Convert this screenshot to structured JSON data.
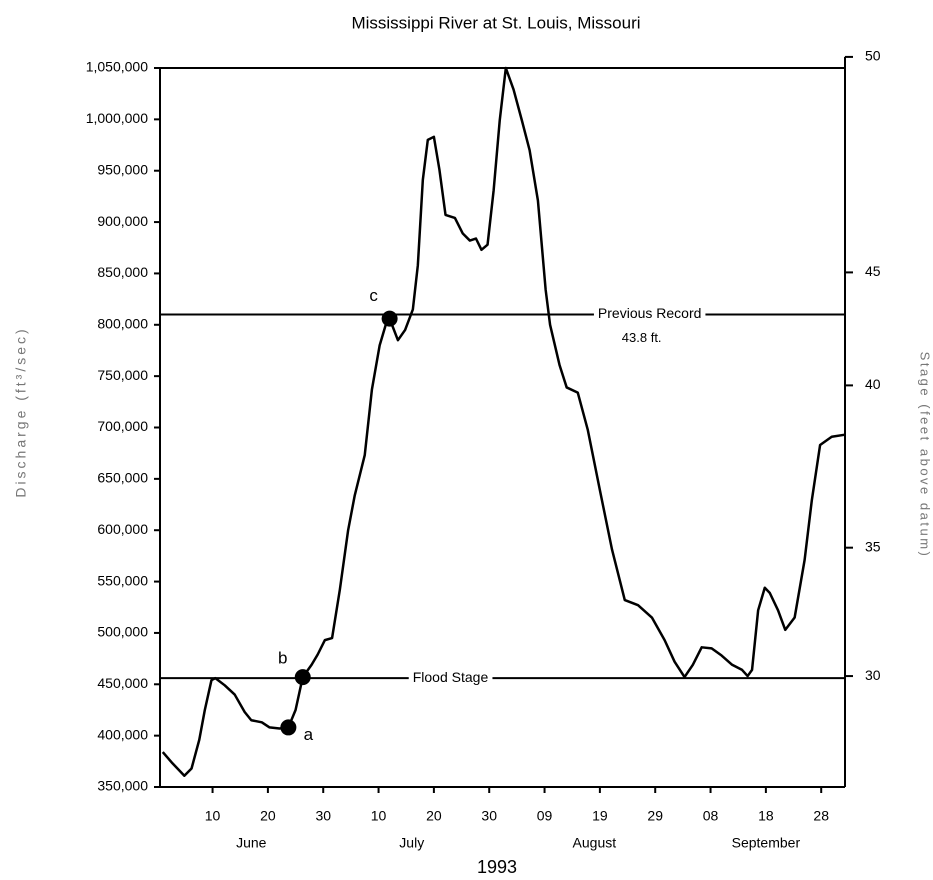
{
  "chart_data": {
    "type": "line",
    "title": "Mississippi River at St. Louis, Missouri",
    "ylabel": "Discharge (ft³/sec)",
    "y2label": "Stage (feet above datum)",
    "xlabel": "1993",
    "color": "#000000",
    "xlim": [
      0.5,
      124.3
    ],
    "ylim": [
      350000,
      1050000
    ],
    "yticks": [
      {
        "value": 350000,
        "label": "350,000"
      },
      {
        "value": 400000,
        "label": "400,000"
      },
      {
        "value": 450000,
        "label": "450,000"
      },
      {
        "value": 500000,
        "label": "500,000"
      },
      {
        "value": 550000,
        "label": "550,000"
      },
      {
        "value": 600000,
        "label": "600,000"
      },
      {
        "value": 650000,
        "label": "650,000"
      },
      {
        "value": 700000,
        "label": "700,000"
      },
      {
        "value": 750000,
        "label": "750,000"
      },
      {
        "value": 800000,
        "label": "800,000"
      },
      {
        "value": 850000,
        "label": "850,000"
      },
      {
        "value": 900000,
        "label": "900,000"
      },
      {
        "value": 950000,
        "label": "950,000"
      },
      {
        "value": 1000000,
        "label": "1,000,000"
      },
      {
        "value": 1050000,
        "label": "1,050,000"
      }
    ],
    "stage_ticks": [
      {
        "value": 30,
        "discharge": 458000
      },
      {
        "value": 35,
        "discharge": 583000
      },
      {
        "value": 40,
        "discharge": 741000
      },
      {
        "value": 45,
        "discharge": 851000
      },
      {
        "value": 50,
        "discharge": 1060800
      }
    ],
    "xticks": [
      10,
      20,
      30,
      {
        "value": 40,
        "label": "10"
      },
      {
        "value": 50,
        "label": "20"
      },
      {
        "value": 60,
        "label": "30"
      },
      {
        "value": 70,
        "label": "09"
      },
      {
        "value": 80,
        "label": "19"
      },
      {
        "value": 90,
        "label": "29"
      },
      {
        "value": 100,
        "label": "08"
      },
      {
        "value": 110,
        "label": "18"
      },
      {
        "value": 120,
        "label": "28"
      }
    ],
    "months": [
      {
        "name": "June",
        "x": 17
      },
      {
        "name": "July",
        "x": 46
      },
      {
        "name": "August",
        "x": 79
      },
      {
        "name": "September",
        "x": 110
      }
    ],
    "x": [
      1,
      2.6,
      4.9,
      6.2,
      7.6,
      8.6,
      9.8,
      10.5,
      12.2,
      14,
      15.8,
      17,
      18.9,
      20.3,
      22.1,
      23.7,
      25,
      26.3,
      27.9,
      29,
      30.3,
      31.6,
      33,
      34.5,
      35.7,
      37.5,
      38.8,
      40.2,
      41.3,
      42,
      43.5,
      44.8,
      46.2,
      47.1,
      48,
      48.9,
      50,
      51,
      52.1,
      53.8,
      55.2,
      56.5,
      57.6,
      58.6,
      59.7,
      60.8,
      61.9,
      63,
      64.4,
      65.9,
      67.3,
      68.8,
      70.2,
      71,
      72.7,
      74,
      76,
      77.8,
      80,
      82.2,
      84.5,
      86.9,
      89.4,
      91.7,
      93.5,
      95.3,
      96.8,
      98.4,
      100.2,
      102,
      103.9,
      105.7,
      106.7,
      107.5,
      108.6,
      109.8,
      110.7,
      112.2,
      113.5,
      115.2,
      117,
      118.3,
      119.8,
      121.9,
      124.3
    ],
    "values": [
      384000,
      374000,
      361000,
      368000,
      396000,
      425000,
      454000,
      456000,
      449000,
      440000,
      423000,
      415000,
      413000,
      408000,
      407000,
      408000,
      425000,
      457000,
      469000,
      479000,
      493000,
      495000,
      542000,
      600000,
      634000,
      673000,
      737000,
      780000,
      800000,
      806000,
      785000,
      795000,
      815000,
      858000,
      941000,
      980000,
      983000,
      951000,
      907000,
      904000,
      889000,
      882000,
      884000,
      873000,
      878000,
      931000,
      999000,
      1050000,
      1029000,
      999000,
      970000,
      921000,
      834000,
      800000,
      761000,
      739000,
      734000,
      698000,
      639000,
      581000,
      532000,
      527000,
      515000,
      493000,
      472000,
      457000,
      469000,
      486000,
      485000,
      478000,
      469000,
      464000,
      458000,
      464000,
      522000,
      544000,
      539000,
      522000,
      503000,
      515000,
      571000,
      629000,
      683000,
      691000,
      693000
    ],
    "points": [
      {
        "label": "a",
        "x": 23.7,
        "value": 408000
      },
      {
        "label": "b",
        "x": 26.3,
        "value": 457000
      },
      {
        "label": "c",
        "x": 42,
        "value": 806000
      }
    ],
    "reference_lines": [
      {
        "label": "Flood Stage",
        "value": 456000,
        "x": 53
      },
      {
        "label": "Previous Record",
        "note": "43.8 ft.",
        "value": 810000,
        "x": 89
      }
    ]
  }
}
